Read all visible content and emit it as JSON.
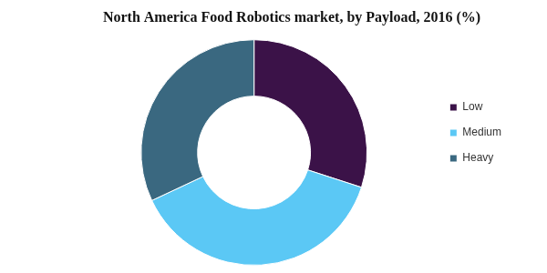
{
  "chart_data": {
    "type": "doughnut",
    "title": "North America Food Robotics market, by Payload, 2016 (%)",
    "categories": [
      "Low",
      "Medium",
      "Heavy"
    ],
    "values": [
      30,
      38,
      32
    ],
    "colors": [
      "#3b1248",
      "#5bc8f5",
      "#3a6880"
    ],
    "legend": "right"
  }
}
